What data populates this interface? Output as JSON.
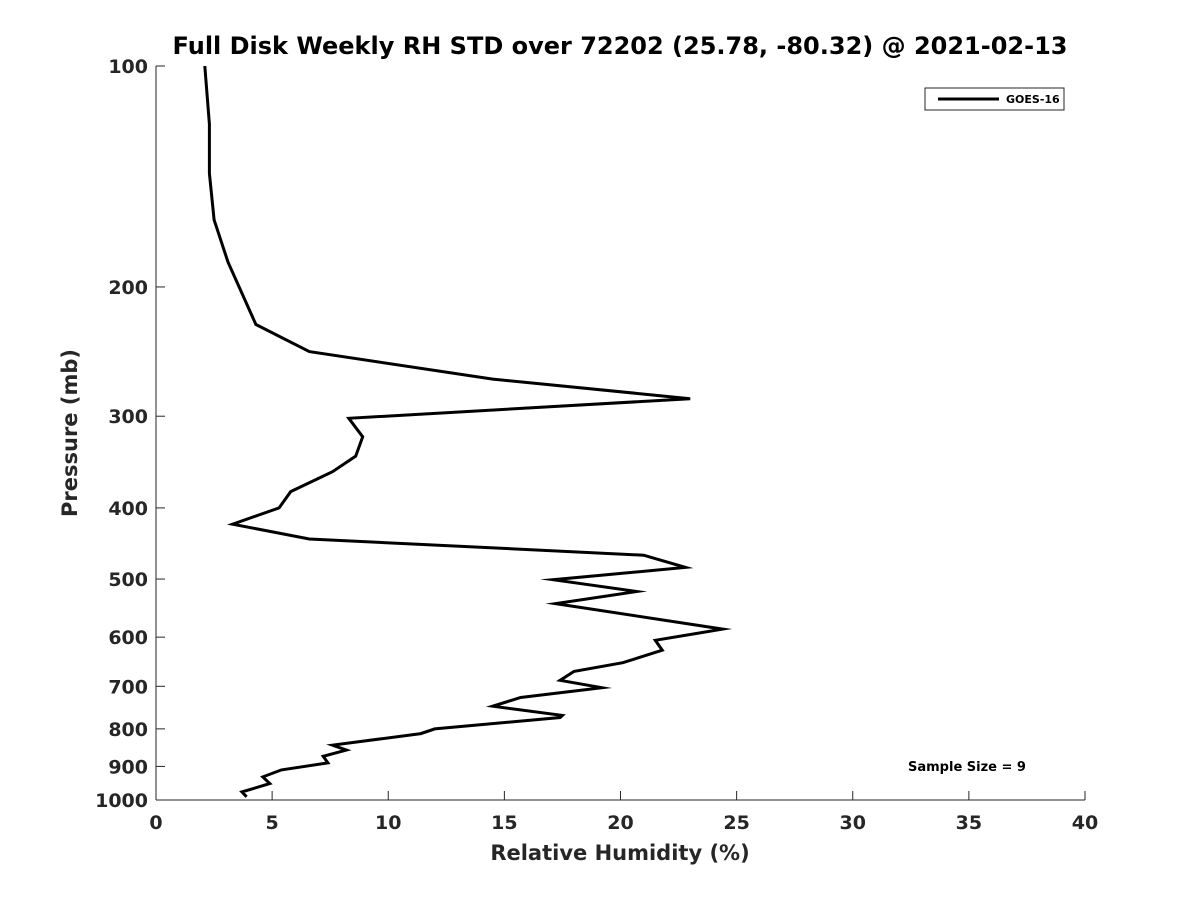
{
  "chart_data": {
    "type": "line",
    "title": "Full Disk Weekly RH STD over 72202 (25.78, -80.32) @ 2021-02-13",
    "xlabel": "Relative Humidity (%)",
    "ylabel": "Pressure (mb)",
    "xlim": [
      0,
      40
    ],
    "ylim": [
      100,
      1000
    ],
    "yscale": "log",
    "yreversed": true,
    "grid": false,
    "legend_position": "top-right",
    "xticks": [
      "0",
      "5",
      "10",
      "15",
      "20",
      "25",
      "30",
      "35",
      "40"
    ],
    "xtick_values": [
      0,
      5,
      10,
      15,
      20,
      25,
      30,
      35,
      40
    ],
    "yticks": [
      "100",
      "200",
      "300",
      "400",
      "500",
      "600",
      "700",
      "800",
      "900",
      "1000"
    ],
    "ytick_values": [
      100,
      200,
      300,
      400,
      500,
      600,
      700,
      800,
      900,
      1000
    ],
    "annotation": "Sample Size = 9",
    "series": [
      {
        "name": "GOES-16",
        "color": "#000000",
        "x": [
          2.1,
          2.3,
          2.3,
          2.5,
          3.1,
          4.3,
          6.6,
          14.5,
          23.0,
          8.3,
          8.9,
          8.6,
          7.6,
          5.8,
          5.3,
          3.3,
          6.6,
          21.0,
          22.8,
          17.1,
          20.7,
          17.2,
          24.4,
          21.5,
          21.8,
          20.1,
          18.0,
          17.4,
          19.2,
          15.7,
          14.5,
          17.5,
          17.4,
          12.0,
          11.4,
          7.6,
          8.2,
          7.2,
          7.4,
          5.4,
          4.6,
          4.9,
          3.7,
          3.9
        ],
        "y": [
          100,
          120,
          140,
          162,
          185,
          225,
          245,
          267,
          284,
          302,
          320,
          340,
          357,
          380,
          400,
          421,
          441,
          464,
          482,
          501,
          520,
          540,
          585,
          606,
          625,
          650,
          668,
          687,
          703,
          725,
          745,
          767,
          772,
          800,
          812,
          842,
          855,
          872,
          890,
          910,
          930,
          950,
          975,
          990
        ]
      }
    ]
  }
}
